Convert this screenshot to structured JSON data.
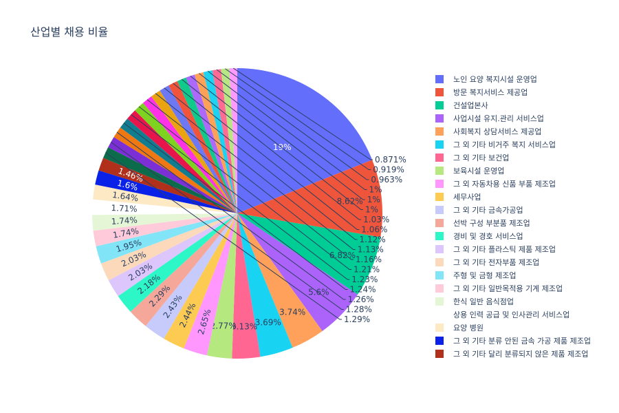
{
  "chart_data": {
    "type": "pie",
    "title": "산업별 채용 비율",
    "legend_position": "right",
    "slices": [
      {
        "label": "노인 요양 복지시설 운영업",
        "value": 19,
        "display": "19%",
        "color": "#636efa",
        "in_legend": true
      },
      {
        "label": "방문 복지서비스 제공업",
        "value": 8.62,
        "display": "8.62%",
        "color": "#EF553B",
        "in_legend": true
      },
      {
        "label": "건설업본사",
        "value": 6.82,
        "display": "6.82%",
        "color": "#00cc96",
        "in_legend": true
      },
      {
        "label": "사업시설 유지.관리 서비스업",
        "value": 5.6,
        "display": "5.6%",
        "color": "#ab63fa",
        "in_legend": true
      },
      {
        "label": "사회복지 상담서비스 제공업",
        "value": 3.74,
        "display": "3.74%",
        "color": "#FFA15A",
        "in_legend": true
      },
      {
        "label": "그 외 기타 비거주 복지 서비스업",
        "value": 3.69,
        "display": "3.69%",
        "color": "#19d3f3",
        "in_legend": true
      },
      {
        "label": "그 외 기타 보건업",
        "value": 3.13,
        "display": "3.13%",
        "color": "#FF6692",
        "in_legend": true
      },
      {
        "label": "보육시설 운영업",
        "value": 2.77,
        "display": "2.77%",
        "color": "#B6E880",
        "in_legend": true
      },
      {
        "label": "그 외 자동차용 신품 부품 제조업",
        "value": 2.65,
        "display": "2.65%",
        "color": "#FF97FF",
        "in_legend": true
      },
      {
        "label": "세무사업",
        "value": 2.44,
        "display": "2.44%",
        "color": "#FECB52",
        "in_legend": true
      },
      {
        "label": "그 외 기타 금속가공업",
        "value": 2.43,
        "display": "2.43%",
        "color": "#c6cbfc",
        "in_legend": true
      },
      {
        "label": "선박 구성 부분품 제조업",
        "value": 2.29,
        "display": "2.29%",
        "color": "#f5a89a",
        "in_legend": true
      },
      {
        "label": "경비 및 경호 서비스업",
        "value": 2.18,
        "display": "2.18%",
        "color": "#2ef7c7",
        "in_legend": true
      },
      {
        "label": "그 외 기타 플라스틱 제품 제조업",
        "value": 2.03,
        "display": "2.03%",
        "color": "#ddc6fb",
        "in_legend": true
      },
      {
        "label": "그 외 기타 전자부품 제조업",
        "value": 2.03,
        "display": "2.03%",
        "color": "#fdd9bb",
        "in_legend": true
      },
      {
        "label": "주형 및 금형 제조업",
        "value": 1.95,
        "display": "1.95%",
        "color": "#82e5f7",
        "in_legend": true
      },
      {
        "label": "그 외 기타 일반목적용 기계 제조업",
        "value": 1.74,
        "display": "1.74%",
        "color": "#ffcad9",
        "in_legend": true
      },
      {
        "label": "한식 일반 음식점업",
        "value": 1.74,
        "display": "1.74%",
        "color": "#e5f6d6",
        "in_legend": true
      },
      {
        "label": "상용 인력 공급 및 인사관리 서비스업",
        "value": 1.71,
        "display": "1.71%",
        "color": "#ffffff",
        "in_legend": true
      },
      {
        "label": "요양 병원",
        "value": 1.64,
        "display": "1.64%",
        "color": "#fde9c4",
        "in_legend": true
      },
      {
        "label": "그 외 기타 분류 안된 금속 가공 제품 제조업",
        "value": 1.6,
        "display": "1.6%",
        "color": "#0a22e8",
        "in_legend": true
      },
      {
        "label": "그 외 기타 달리 분류되지 않은 제품 제조업",
        "value": 1.46,
        "display": "1.46%",
        "color": "#b0301b",
        "in_legend": true
      },
      {
        "label": "",
        "value": 1.29,
        "display": "1.29%",
        "color": "#0c6b4a",
        "in_legend": false
      },
      {
        "label": "",
        "value": 1.28,
        "display": "1.28%",
        "color": "#7b2fd5",
        "in_legend": false
      },
      {
        "label": "",
        "value": 1.26,
        "display": "1.26%",
        "color": "#f07812",
        "in_legend": false
      },
      {
        "label": "",
        "value": 1.24,
        "display": "1.24%",
        "color": "#127d8f",
        "in_legend": false
      },
      {
        "label": "",
        "value": 1.23,
        "display": "1.23%",
        "color": "#e8144c",
        "in_legend": false
      },
      {
        "label": "",
        "value": 1.21,
        "display": "1.21%",
        "color": "#7ed321",
        "in_legend": false
      },
      {
        "label": "",
        "value": 1.16,
        "display": "1.16%",
        "color": "#ff33e6",
        "in_legend": false
      },
      {
        "label": "",
        "value": 1.13,
        "display": "1.13%",
        "color": "#eaa411",
        "in_legend": false
      },
      {
        "label": "",
        "value": 1.12,
        "display": "1.12%",
        "color": "#6d78f2",
        "in_legend": false
      },
      {
        "label": "",
        "value": 1.06,
        "display": "1.06%",
        "color": "#f0543a",
        "in_legend": false
      },
      {
        "label": "",
        "value": 1.03,
        "display": "1.03%",
        "color": "#12c98c",
        "in_legend": false
      },
      {
        "label": "",
        "value": 1,
        "display": "1%",
        "color": "#ad6afa",
        "in_legend": false
      },
      {
        "label": "",
        "value": 1,
        "display": "1%",
        "color": "#ffa257",
        "in_legend": false
      },
      {
        "label": "",
        "value": 1,
        "display": "1%",
        "color": "#1ed2f0",
        "in_legend": false
      },
      {
        "label": "",
        "value": 0.963,
        "display": "0.963%",
        "color": "#ff6b93",
        "in_legend": false
      },
      {
        "label": "",
        "value": 0.919,
        "display": "0.919%",
        "color": "#b9e685",
        "in_legend": false
      },
      {
        "label": "",
        "value": 0.871,
        "display": "0.871%",
        "color": "#ff9aff",
        "in_legend": false
      }
    ]
  }
}
